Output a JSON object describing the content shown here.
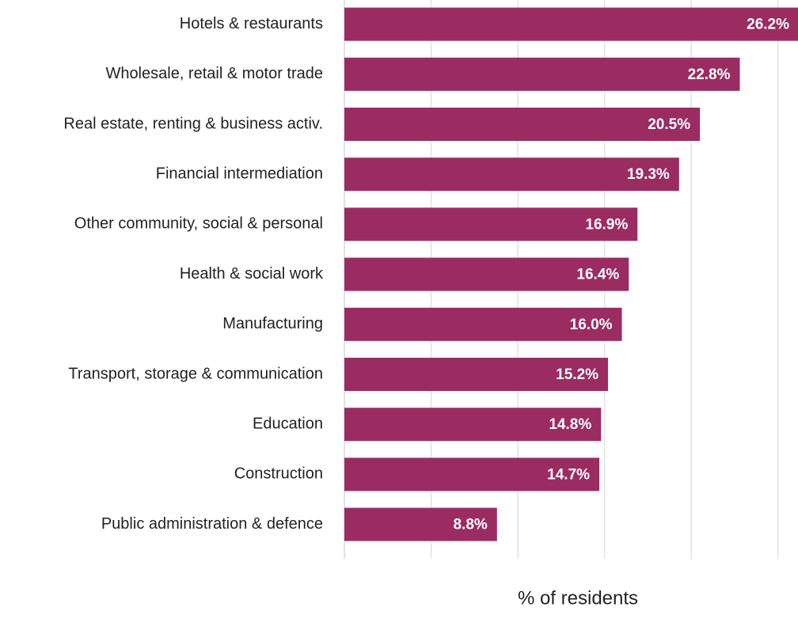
{
  "chart_data": {
    "type": "hbar",
    "categories": [
      "Hotels & restaurants",
      "Wholesale, retail & motor trade",
      "Real estate, renting & business activ.",
      "Financial intermediation",
      "Other community, social & personal",
      "Health & social work",
      "Manufacturing",
      "Transport, storage & communication",
      "Education",
      "Construction",
      "Public administration & defence"
    ],
    "values": [
      26.2,
      22.8,
      20.5,
      19.3,
      16.9,
      16.4,
      16.0,
      15.2,
      14.8,
      14.7,
      8.8
    ],
    "value_labels": [
      "26.2%",
      "22.8%",
      "20.5%",
      "19.3%",
      "16.9%",
      "16.4%",
      "16.0%",
      "15.2%",
      "14.8%",
      "14.7%",
      "8.8%"
    ],
    "color": "#9b2c62",
    "xlabel": "% of residents",
    "xlim": [
      0,
      26.2
    ],
    "xticks": [
      0,
      5,
      10,
      15,
      20,
      25
    ],
    "grid": true
  }
}
